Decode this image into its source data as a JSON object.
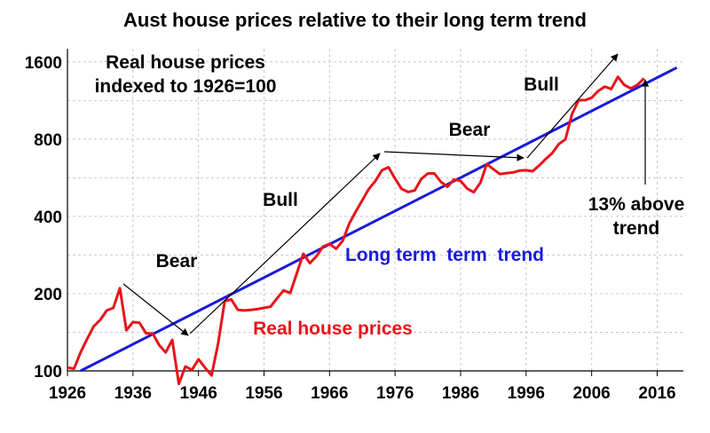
{
  "colors": {
    "price": "#e8141b",
    "trend": "#1a1ad9",
    "arrow": "#000000",
    "grid": "#c8c8c8"
  },
  "chart_data": {
    "type": "line",
    "title": "Aust house prices relative to their long term trend",
    "xlabel": "",
    "ylabel": "",
    "y_scale": "log2",
    "ylim": [
      100,
      1800
    ],
    "xlim": [
      1926,
      2020
    ],
    "grid": true,
    "x_ticks": [
      1926,
      1936,
      1946,
      1956,
      1966,
      1976,
      1986,
      1996,
      2006,
      2016
    ],
    "x_tick_labels": [
      "1926",
      "1936",
      "1946",
      "1956",
      "1966",
      "1976",
      "1986",
      "1996",
      "2006",
      "2016"
    ],
    "y_ticks": [
      100,
      200,
      400,
      800,
      1600
    ],
    "y_tick_labels": [
      "100",
      "200",
      "400",
      "800",
      "1600"
    ],
    "series": [
      {
        "name": "Real house prices",
        "x": [
          1926,
          1927,
          1928,
          1929,
          1930,
          1931,
          1932,
          1933,
          1934,
          1935,
          1936,
          1937,
          1938,
          1939,
          1940,
          1941,
          1942,
          1943,
          1944,
          1945,
          1946,
          1947,
          1948,
          1949,
          1950,
          1951,
          1952,
          1953,
          1954,
          1955,
          1956,
          1957,
          1958,
          1959,
          1960,
          1961,
          1962,
          1963,
          1964,
          1965,
          1966,
          1967,
          1968,
          1969,
          1970,
          1971,
          1972,
          1973,
          1974,
          1975,
          1976,
          1977,
          1978,
          1979,
          1980,
          1981,
          1982,
          1983,
          1984,
          1985,
          1986,
          1987,
          1988,
          1989,
          1990,
          1991,
          1992,
          1993,
          1994,
          1995,
          1996,
          1997,
          1998,
          1999,
          2000,
          2001,
          2002,
          2003,
          2004,
          2005,
          2006,
          2007,
          2008,
          2009,
          2010,
          2011,
          2012,
          2013,
          2014
        ],
        "values": [
          103,
          102,
          118,
          133,
          149,
          158,
          172,
          176,
          210,
          144,
          155,
          154,
          140,
          140,
          126,
          118,
          132,
          89,
          104,
          101,
          111,
          103,
          96,
          128,
          187,
          190,
          173,
          172,
          173,
          174,
          176,
          178,
          192,
          206,
          201,
          240,
          286,
          263,
          280,
          305,
          313,
          299,
          321,
          375,
          418,
          462,
          512,
          550,
          605,
          622,
          562,
          512,
          498,
          505,
          560,
          588,
          588,
          545,
          522,
          557,
          550,
          513,
          497,
          539,
          640,
          611,
          585,
          590,
          593,
          603,
          605,
          600,
          632,
          670,
          706,
          766,
          799,
          1002,
          1135,
          1135,
          1160,
          1232,
          1282,
          1255,
          1400,
          1300,
          1262,
          1303,
          1381
        ]
      },
      {
        "name": "Long term trend",
        "x": [
          1928,
          2019
        ],
        "values": [
          100,
          1520
        ]
      }
    ],
    "annotations": {
      "real_prices_label": "Real house prices",
      "trend_label": "Long term  term  trend",
      "bear_1": "Bear",
      "bull_1": "Bull",
      "bear_2": "Bear",
      "bull_2": "Bull",
      "real_indexed_line1": "Real house prices",
      "real_indexed_line2": "indexed to 1926=100",
      "above_trend_line1": "13% above",
      "above_trend_line2": "trend"
    }
  }
}
